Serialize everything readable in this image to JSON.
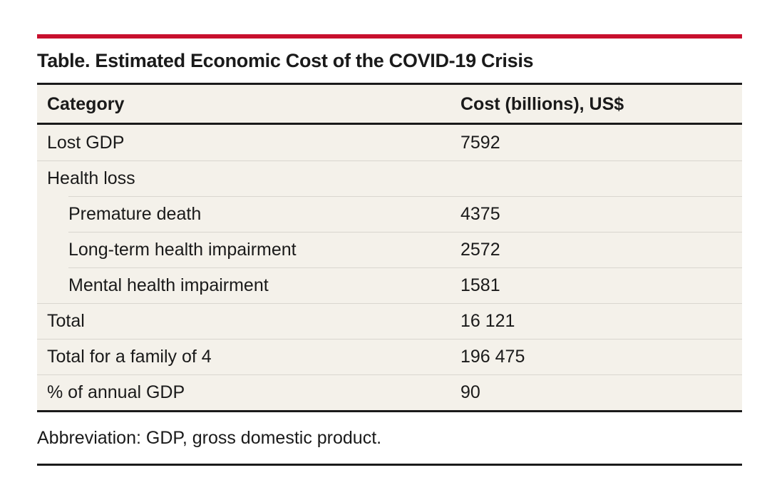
{
  "table": {
    "title": "Table. Estimated Economic Cost of the COVID-19 Crisis",
    "headers": {
      "category": "Category",
      "cost": "Cost (billions), US$"
    },
    "rows": [
      {
        "category": "Lost GDP",
        "value": "7592"
      },
      {
        "category": "Health loss",
        "value": ""
      },
      {
        "category": "Premature death",
        "value": "4375"
      },
      {
        "category": "Long-term health impairment",
        "value": "2572"
      },
      {
        "category": "Mental health impairment",
        "value": "1581"
      },
      {
        "category": "Total",
        "value": "16 121"
      },
      {
        "category": "Total for a family of 4",
        "value": "196 475"
      },
      {
        "category": "% of annual GDP",
        "value": "90"
      }
    ],
    "footnote": "Abbreviation: GDP, gross domestic product."
  },
  "colors": {
    "accent_rule": "#c8102e",
    "table_background": "#f4f1ea",
    "row_divider": "#d9d6cf",
    "text": "#1a1a1a"
  }
}
